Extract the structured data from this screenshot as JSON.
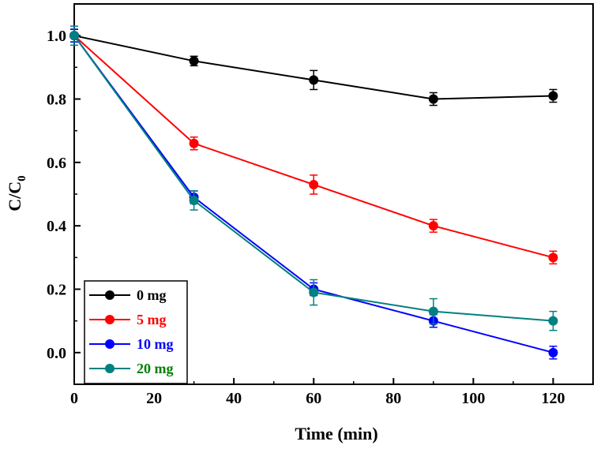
{
  "chart_data": {
    "type": "line",
    "title": "",
    "xlabel": "Time (min)",
    "ylabel_main": "C/C",
    "ylabel_sub": "0",
    "xlim": [
      0,
      130
    ],
    "ylim": [
      -0.1,
      1.1
    ],
    "xticks": [
      0,
      20,
      40,
      60,
      80,
      100,
      120
    ],
    "xtick_labels": [
      "0",
      "20",
      "40",
      "60",
      "80",
      "100",
      "120"
    ],
    "yticks": [
      0.0,
      0.2,
      0.4,
      0.6,
      0.8,
      1.0
    ],
    "ytick_labels": [
      "0.0",
      "0.2",
      "0.4",
      "0.6",
      "0.8",
      "1.0"
    ],
    "legend_position": "bottom-left",
    "x": [
      0,
      30,
      60,
      90,
      120
    ],
    "series": [
      {
        "name": "0 mg",
        "color": "#000000",
        "label_color": "#000000",
        "values": [
          1.0,
          0.92,
          0.86,
          0.8,
          0.81
        ],
        "errors": [
          0.02,
          0.015,
          0.03,
          0.02,
          0.02
        ]
      },
      {
        "name": "5 mg",
        "color": "#ff0000",
        "label_color": "#ff0000",
        "values": [
          1.0,
          0.66,
          0.53,
          0.4,
          0.3
        ],
        "errors": [
          0.02,
          0.02,
          0.03,
          0.02,
          0.02
        ]
      },
      {
        "name": "10 mg",
        "color": "#0000ff",
        "label_color": "#0000ff",
        "values": [
          1.0,
          0.49,
          0.2,
          0.1,
          0.0
        ],
        "errors": [
          0.02,
          0.02,
          0.02,
          0.02,
          0.02
        ]
      },
      {
        "name": "20 mg",
        "color": "#008080",
        "label_color": "#008000",
        "values": [
          1.0,
          0.48,
          0.19,
          0.13,
          0.1
        ],
        "errors": [
          0.03,
          0.03,
          0.04,
          0.04,
          0.03
        ]
      }
    ]
  }
}
